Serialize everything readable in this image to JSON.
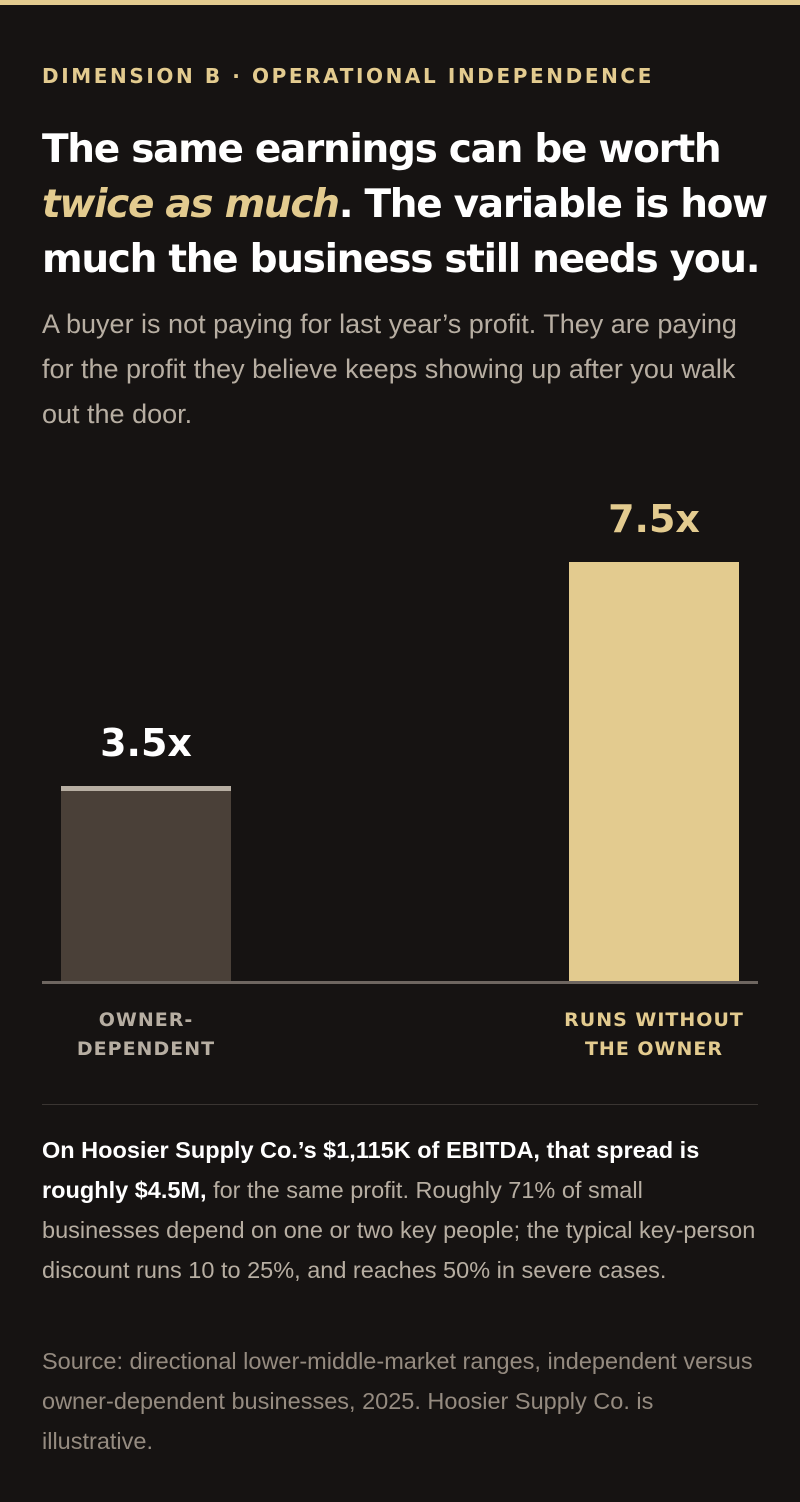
{
  "eyebrow": "DIMENSION B · OPERATIONAL INDEPENDENCE",
  "headline": {
    "part1": "The same earnings can be worth ",
    "emphasis": "twice as much",
    "part2": ". The variable is how much the business still needs you."
  },
  "subhead": "A buyer is not paying for last year’s profit. They are paying for the profit they believe keeps showing up after you walk out the door.",
  "chart_data": {
    "type": "bar",
    "categories": [
      "OWNER-DEPENDENT",
      "RUNS WITHOUT THE OWNER"
    ],
    "category_lines": [
      [
        "OWNER-",
        "DEPENDENT"
      ],
      [
        "RUNS WITHOUT",
        "THE OWNER"
      ]
    ],
    "values": [
      3.5,
      7.5
    ],
    "value_labels": [
      "3.5x",
      "7.5x"
    ],
    "ylim": [
      0,
      7.5
    ],
    "grid": false,
    "colors": {
      "bars": [
        "#4a4038",
        "#e3cb8f"
      ],
      "bar_caps": [
        "#b7aea2",
        "#e3cb8f"
      ],
      "value_labels": [
        "#ffffff",
        "#e3cb8f"
      ],
      "category_labels": [
        "#b7aea2",
        "#e3cb8f"
      ],
      "baseline": "#6e6660"
    }
  },
  "note": {
    "lead": "On Hoosier Supply Co.’s $1,115K of EBITDA, that spread is roughly $4.5M,",
    "body": " for the same profit. Roughly 71% of small businesses depend on one or two key people; the typical key-person discount runs 10 to 25%, and reaches 50% in severe cases."
  },
  "source": "Source: directional lower-middle-market ranges, independent versus owner-dependent businesses, 2025. Hoosier Supply Co. is illustrative.",
  "colors": {
    "background": "#161312",
    "accent": "#e3cb8f",
    "text": "#ffffff",
    "muted": "#b7aea2"
  }
}
